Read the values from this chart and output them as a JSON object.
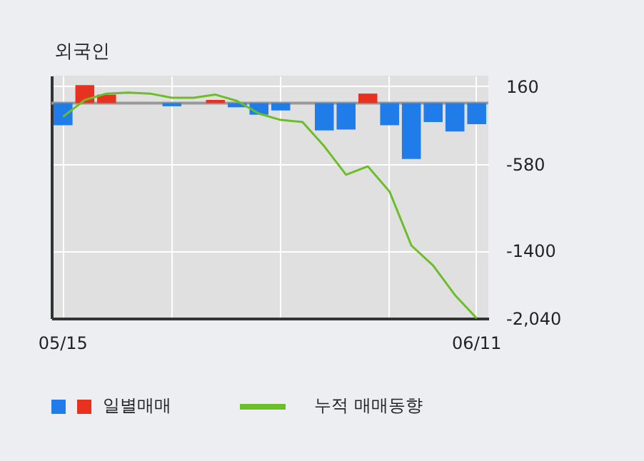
{
  "chart_data": {
    "type": "bar",
    "title": "외국인",
    "categories": [
      "05/15",
      null,
      null,
      null,
      null,
      null,
      null,
      null,
      null,
      null,
      null,
      null,
      null,
      null,
      null,
      null,
      null,
      null,
      null,
      "06/11"
    ],
    "series": [
      {
        "name": "일별매매",
        "colors": [
          "#1f7ce8",
          "#e8311e",
          "#e8311e",
          "#e8311e",
          "#1f7ce8",
          "#1f7ce8",
          "#1f7ce8",
          "#e8311e",
          "#1f7ce8",
          "#1f7ce8",
          "#1f7ce8",
          "#1f7ce8",
          "#1f7ce8",
          "#1f7ce8",
          "#e8311e",
          "#1f7ce8",
          "#1f7ce8",
          "#1f7ce8",
          "#1f7ce8",
          "#1f7ce8"
        ],
        "values": [
          -210,
          170,
          80,
          0,
          0,
          -30,
          0,
          30,
          -40,
          -110,
          -70,
          0,
          -260,
          -250,
          90,
          -210,
          -530,
          -180,
          -270,
          -200
        ]
      },
      {
        "name": "누적 매매동향",
        "type": "line",
        "color": "#6cbd2a",
        "values": [
          -130,
          30,
          90,
          100,
          90,
          50,
          50,
          80,
          20,
          -100,
          -160,
          -180,
          -410,
          -680,
          -600,
          -840,
          -1350,
          -1540,
          -1820,
          -2040
        ]
      }
    ],
    "ylim": [
      -2040,
      260
    ],
    "yticks": [
      160,
      -580,
      -1400,
      {
        "value": -2040,
        "label": "-2,040"
      }
    ],
    "ref_lines": [
      {
        "axis": "y",
        "value": 0,
        "color": "#999999"
      }
    ],
    "grid": true,
    "legend": "bottom"
  }
}
